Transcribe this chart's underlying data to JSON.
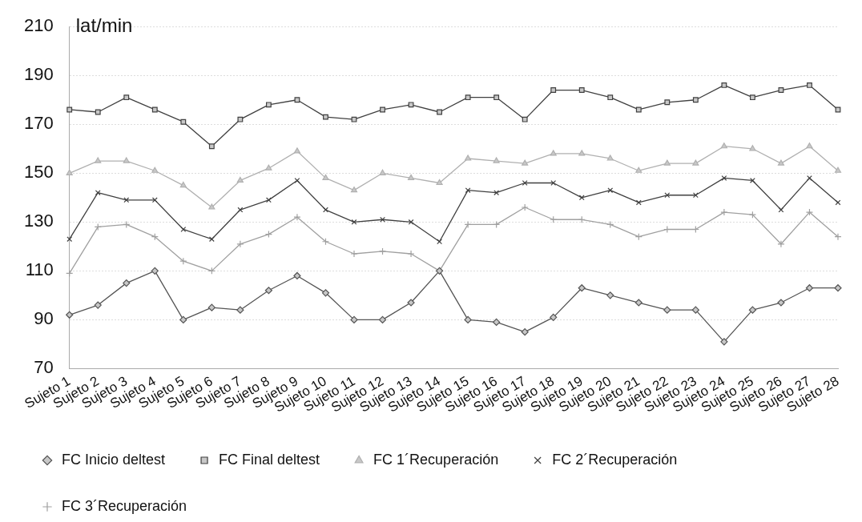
{
  "chart_data": {
    "type": "line",
    "ylabel": "lat/min",
    "categories": [
      "Sujeto 1",
      "Sujeto 2",
      "Sujeto 3",
      "Sujeto 4",
      "Sujeto 5",
      "Sujeto 6",
      "Sujeto 7",
      "Sujeto 8",
      "Sujeto 9",
      "Sujeto 10",
      "Sujeto 11",
      "Sujeto 12",
      "Sujeto 13",
      "Sujeto 14",
      "Sujeto 15",
      "Sujeto 16",
      "Sujeto 17",
      "Sujeto 18",
      "Sujeto 19",
      "Sujeto 20",
      "Sujeto 21",
      "Sujeto 22",
      "Sujeto 23",
      "Sujeto 24",
      "Sujeto 25",
      "Sujeto 26",
      "Sujeto 27",
      "Sujeto 28"
    ],
    "series": [
      {
        "name": "FC Inicio deltest",
        "color": "#555555",
        "marker": "diamond",
        "values": [
          92,
          96,
          105,
          110,
          90,
          95,
          94,
          102,
          108,
          101,
          90,
          90,
          97,
          110,
          90,
          89,
          85,
          91,
          103,
          100,
          97,
          94,
          94,
          81,
          94,
          97,
          103,
          103
        ]
      },
      {
        "name": "FC Final deltest",
        "color": "#404040",
        "marker": "square",
        "values": [
          176,
          175,
          181,
          176,
          171,
          161,
          172,
          178,
          180,
          173,
          172,
          176,
          178,
          175,
          181,
          181,
          172,
          184,
          184,
          181,
          176,
          179,
          180,
          186,
          181,
          184,
          186,
          176
        ]
      },
      {
        "name": "FC 1´Recuperación",
        "color": "#b0b0b0",
        "marker": "triangle",
        "values": [
          150,
          155,
          155,
          151,
          145,
          136,
          147,
          152,
          159,
          148,
          143,
          150,
          148,
          146,
          156,
          155,
          154,
          158,
          158,
          156,
          151,
          154,
          154,
          161,
          160,
          154,
          161,
          151
        ]
      },
      {
        "name": "FC 2´Recuperación",
        "color": "#404040",
        "marker": "cross",
        "values": [
          123,
          142,
          139,
          139,
          127,
          123,
          135,
          139,
          147,
          135,
          130,
          131,
          130,
          122,
          143,
          142,
          146,
          146,
          140,
          143,
          138,
          141,
          141,
          148,
          147,
          135,
          148,
          138
        ]
      },
      {
        "name": "FC 3´Recuperación",
        "color": "#a0a0a0",
        "marker": "cross",
        "values": [
          109,
          128,
          129,
          124,
          114,
          110,
          121,
          125,
          132,
          122,
          117,
          118,
          117,
          110,
          129,
          129,
          136,
          131,
          131,
          129,
          124,
          127,
          127,
          134,
          133,
          121,
          134,
          124
        ]
      }
    ],
    "ylim": [
      70,
      210
    ],
    "yticks": [
      70,
      90,
      110,
      130,
      150,
      170,
      190,
      210
    ],
    "grid": "y",
    "legend": "bottom",
    "line_style": "solid"
  }
}
